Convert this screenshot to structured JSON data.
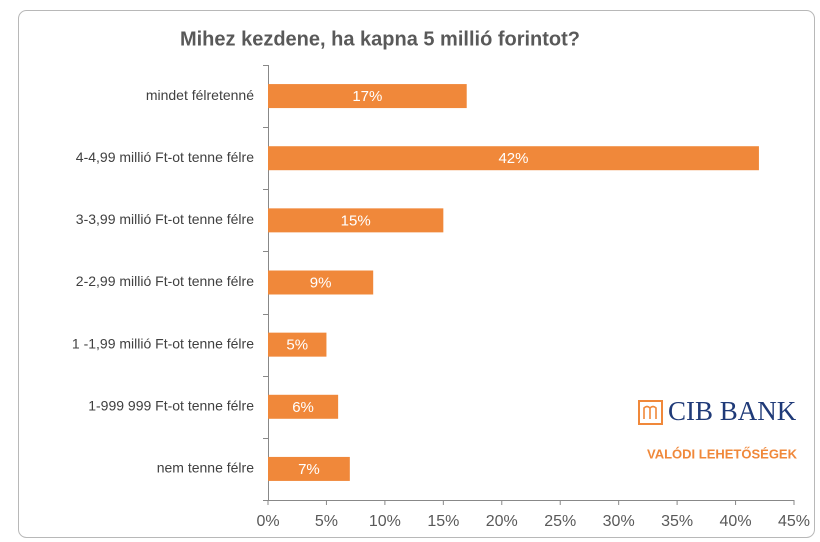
{
  "chart_data": {
    "type": "bar",
    "orientation": "horizontal",
    "title": "Mihez kezdene, ha kapna 5 millió  forintot?",
    "categories": [
      "mindet félretenné",
      "4-4,99 millió Ft-ot tenne félre",
      "3-3,99 millió Ft-ot tenne félre",
      "2-2,99 millió Ft-ot tenne félre",
      "1 -1,99 millió Ft-ot tenne félre",
      "1-999 999 Ft-ot tenne félre",
      "nem tenne félre"
    ],
    "values": [
      17,
      42,
      15,
      9,
      5,
      6,
      7
    ],
    "value_labels": [
      "17%",
      "42%",
      "15%",
      "9%",
      "5%",
      "6%",
      "7%"
    ],
    "color": "#f0883a",
    "xlim": [
      0,
      45
    ],
    "xticks": [
      {
        "value": 0,
        "label": "0%"
      },
      {
        "value": 5,
        "label": "5%"
      },
      {
        "value": 10,
        "label": "10%"
      },
      {
        "value": 15,
        "label": "15%"
      },
      {
        "value": 20,
        "label": "20%"
      },
      {
        "value": 25,
        "label": "25%"
      },
      {
        "value": 30,
        "label": "30%"
      },
      {
        "value": 35,
        "label": "35%"
      },
      {
        "value": 40,
        "label": "40%"
      },
      {
        "value": 45,
        "label": "45%"
      }
    ],
    "grid": false,
    "logo": {
      "name": "CIB BANK",
      "slogan": "VALÓDI LEHETŐSÉGEK"
    }
  }
}
